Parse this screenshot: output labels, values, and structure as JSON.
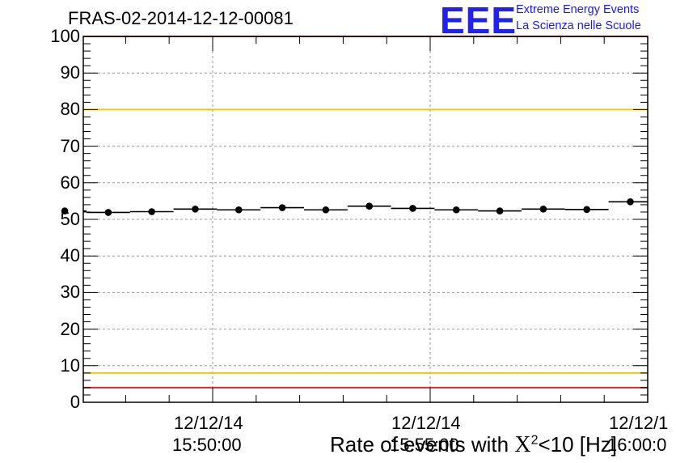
{
  "header": {
    "run_title": "FRAS-02-2014-12-12-00081",
    "logo_text": "EEE",
    "logo_line1": "Extreme Energy Events",
    "logo_line2": "La Scienza nelle Scuole"
  },
  "chart_data": {
    "type": "scatter",
    "title": "FRAS-02-2014-12-12-00081",
    "xlabel_prefix": "Rate of events with ",
    "xlabel_chi": "X",
    "xlabel_sup": "2",
    "xlabel_suffix": "<10 [Hz]",
    "ylim": [
      0,
      100
    ],
    "yticks": [
      "0",
      "10",
      "20",
      "30",
      "40",
      "50",
      "60",
      "70",
      "80",
      "90",
      "100"
    ],
    "xticks": [
      {
        "date": "12/12/14",
        "time": "15:50:00"
      },
      {
        "date": "12/12/14",
        "time": "15:55:00"
      },
      {
        "date": "12/12/1",
        "time": "16:00:0"
      }
    ],
    "grid": true,
    "x": [
      "15:46:36",
      "15:47:36",
      "15:48:36",
      "15:49:36",
      "15:50:36",
      "15:51:36",
      "15:52:36",
      "15:53:36",
      "15:54:36",
      "15:55:36",
      "15:56:36",
      "15:57:36",
      "15:58:36",
      "15:59:36"
    ],
    "values": [
      52.3,
      51.9,
      52.1,
      52.8,
      52.6,
      53.2,
      52.6,
      53.6,
      53.0,
      52.6,
      52.3,
      52.8,
      52.7,
      54.8
    ],
    "reference_lines": [
      {
        "value": 100,
        "color": "#e8262a"
      },
      {
        "value": 80,
        "color": "#f1c40f"
      },
      {
        "value": 8,
        "color": "#f1c40f"
      },
      {
        "value": 4,
        "color": "#e8262a"
      }
    ],
    "marker_color": "#000000"
  }
}
